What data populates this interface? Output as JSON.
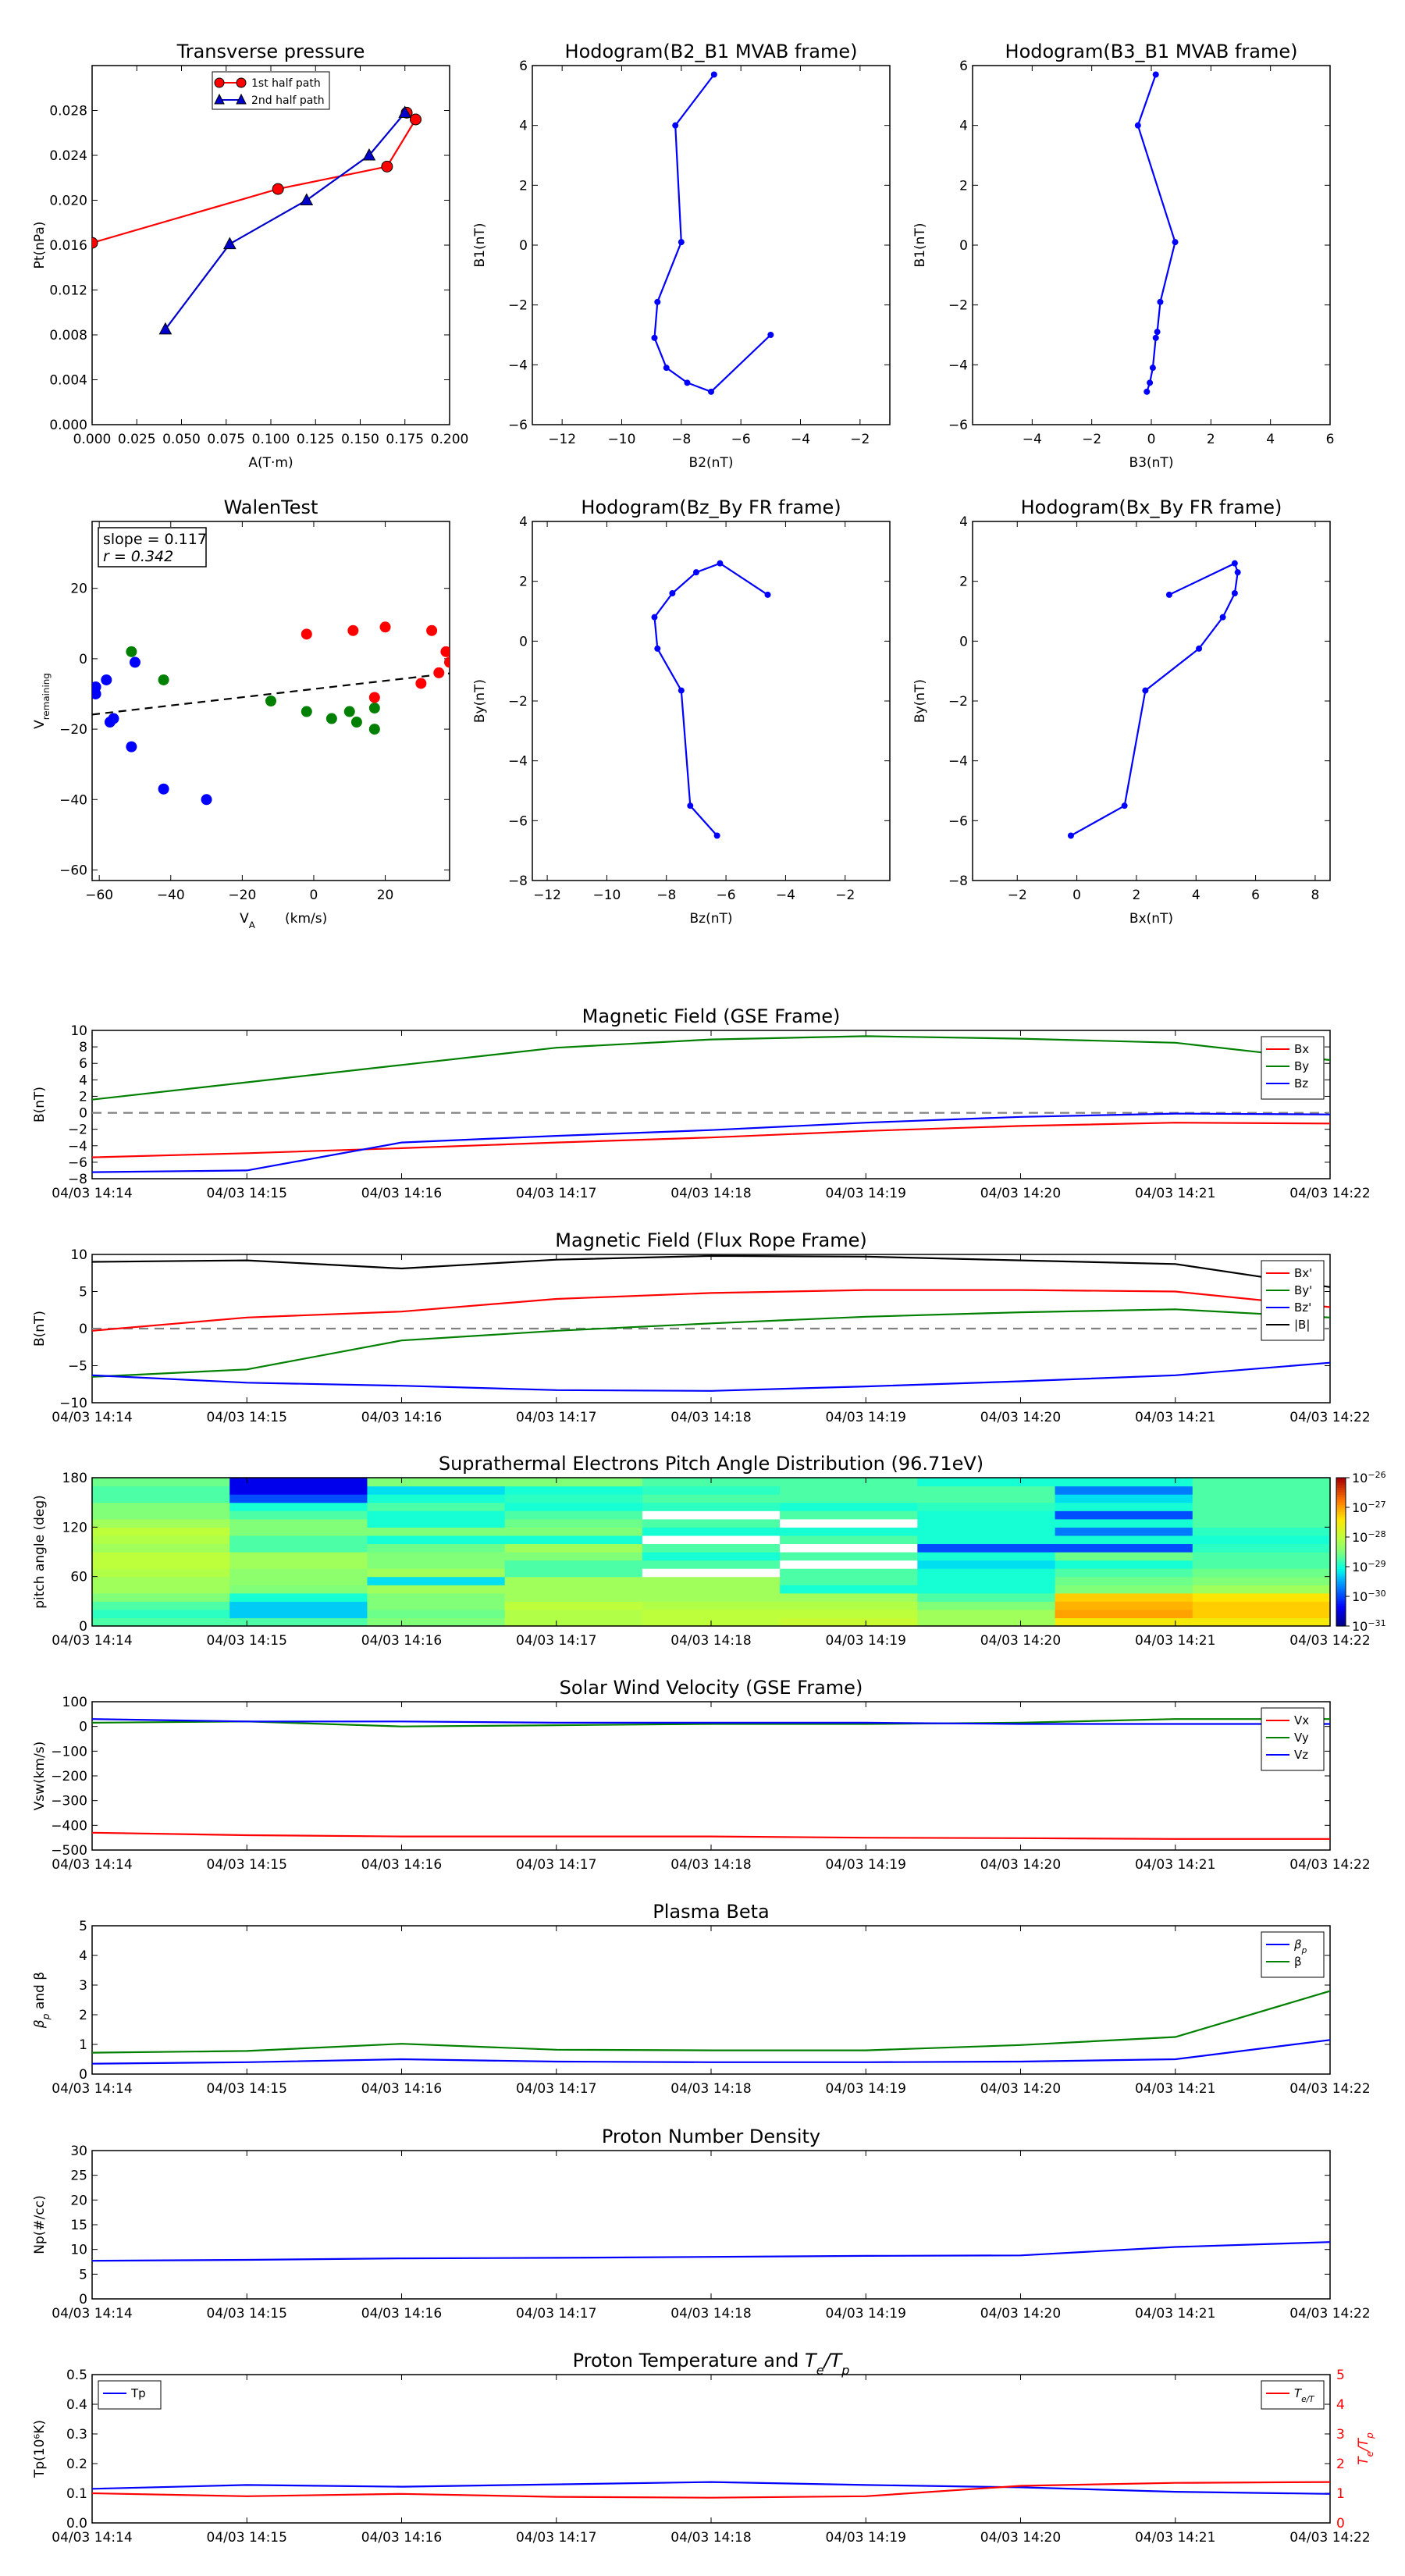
{
  "colors": {
    "red": "#ff0000",
    "green": "#008000",
    "blue": "#0000ff",
    "black": "#000000",
    "gray": "#808080",
    "navy": "#0000cc"
  },
  "time_ticks": [
    "04/03 14:14",
    "04/03 14:15",
    "04/03 14:16",
    "04/03 14:17",
    "04/03 14:18",
    "04/03 14:19",
    "04/03 14:20",
    "04/03 14:21",
    "04/03 14:22"
  ],
  "chart_data": [
    {
      "id": "pt",
      "type": "line",
      "title": "Transverse pressure",
      "xlabel": "A(T·m)",
      "ylabel": "Pt(nPa)",
      "xlim": [
        0,
        0.2
      ],
      "ylim": [
        0,
        0.032
      ],
      "xticks": [
        0.0,
        0.025,
        0.05,
        0.075,
        0.1,
        0.125,
        0.15,
        0.175,
        0.2
      ],
      "xtick_labels": [
        "0.000",
        "0.025",
        "0.050",
        "0.075",
        "0.100",
        "0.125",
        "0.150",
        "0.175",
        "0.200"
      ],
      "yticks": [
        0,
        0.004,
        0.008,
        0.012,
        0.016,
        0.02,
        0.024,
        0.028
      ],
      "ytick_labels": [
        "0.000",
        "0.004",
        "0.008",
        "0.012",
        "0.016",
        "0.020",
        "0.024",
        "0.028"
      ],
      "legend": "top-center",
      "series": [
        {
          "name": "1st half path",
          "color": "#ff0000",
          "marker": "circle",
          "x": [
            0.0,
            0.104,
            0.165,
            0.181,
            0.176
          ],
          "y": [
            0.0162,
            0.021,
            0.023,
            0.0272,
            0.0278
          ]
        },
        {
          "name": "2nd half path",
          "color": "#0000cc",
          "marker": "triangle",
          "x": [
            0.041,
            0.077,
            0.12,
            0.155,
            0.175
          ],
          "y": [
            0.0085,
            0.0161,
            0.02,
            0.024,
            0.0278
          ]
        }
      ]
    },
    {
      "id": "h1",
      "type": "line",
      "title": "Hodogram(B2_B1 MVAB frame)",
      "xlabel": "B2(nT)",
      "ylabel": "B1(nT)",
      "xlim": [
        -13,
        -1
      ],
      "ylim": [
        -6,
        6
      ],
      "xticks": [
        -12,
        -10,
        -8,
        -6,
        -4,
        -2
      ],
      "xtick_labels": [
        "−12",
        "−10",
        "−8",
        "−6",
        "−4",
        "−2"
      ],
      "yticks": [
        -6,
        -4,
        -2,
        0,
        2,
        4,
        6
      ],
      "ytick_labels": [
        "−6",
        "−4",
        "−2",
        "0",
        "2",
        "4",
        "6"
      ],
      "series": [
        {
          "color": "#0000ff",
          "marker": "dot",
          "x": [
            -6.9,
            -8.2,
            -8.0,
            -8.8,
            -8.9,
            -8.5,
            -7.8,
            -7.0,
            -5.0
          ],
          "y": [
            5.7,
            4.0,
            0.1,
            -1.9,
            -3.1,
            -4.1,
            -4.6,
            -4.9,
            -3.0
          ]
        }
      ]
    },
    {
      "id": "h2",
      "type": "line",
      "title": "Hodogram(B3_B1 MVAB frame)",
      "xlabel": "B3(nT)",
      "ylabel": "B1(nT)",
      "xlim": [
        -6,
        6
      ],
      "ylim": [
        -6,
        6
      ],
      "xticks": [
        -4,
        -2,
        0,
        2,
        4,
        6
      ],
      "xtick_labels": [
        "−4",
        "−2",
        "0",
        "2",
        "4",
        "6"
      ],
      "yticks": [
        -6,
        -4,
        -2,
        0,
        2,
        4,
        6
      ],
      "ytick_labels": [
        "−6",
        "−4",
        "−2",
        "0",
        "2",
        "4",
        "6"
      ],
      "series": [
        {
          "color": "#0000ff",
          "marker": "dot",
          "x": [
            0.15,
            -0.45,
            0.8,
            0.3,
            0.2,
            0.15,
            0.05,
            -0.05,
            -0.15
          ],
          "y": [
            5.7,
            4.0,
            0.1,
            -1.9,
            -2.9,
            -3.1,
            -4.1,
            -4.6,
            -4.9
          ]
        }
      ]
    },
    {
      "id": "walen",
      "type": "scatter",
      "title": "WalenTest",
      "xlabel": "V_A(km/s)",
      "ylabel": "V_remaining(km/s)",
      "xlim": [
        -62,
        38
      ],
      "ylim": [
        -63,
        39
      ],
      "xticks": [
        -60,
        -40,
        -20,
        0,
        20
      ],
      "xtick_labels": [
        "−60",
        "−40",
        "−20",
        "0",
        "20"
      ],
      "yticks": [
        -60,
        -40,
        -20,
        0,
        20
      ],
      "ytick_labels": [
        "−60",
        "−40",
        "−20",
        "0",
        "20"
      ],
      "annotation": {
        "slope": "slope = 0.117",
        "r": "r = 0.342"
      },
      "fit": {
        "slope": 0.117,
        "intercept": -8.6,
        "color": "#000000",
        "style": "dashed"
      },
      "series": [
        {
          "color": "#0000ff",
          "x": [
            -61,
            -61,
            -58,
            -57,
            -56,
            -51,
            -50,
            -42,
            -30
          ],
          "y": [
            -8,
            -10,
            -6,
            -18,
            -17,
            -25,
            -1,
            -37,
            -40
          ]
        },
        {
          "color": "#008000",
          "x": [
            -51,
            -42,
            -12,
            -2,
            5,
            10,
            12,
            17,
            17
          ],
          "y": [
            2,
            -6,
            -12,
            -15,
            -17,
            -15,
            -18,
            -14,
            -20
          ]
        },
        {
          "color": "#ff0000",
          "x": [
            -2,
            11,
            17,
            20,
            30,
            33,
            35,
            37,
            38
          ],
          "y": [
            7,
            8,
            -11,
            9,
            -7,
            8,
            -4,
            2,
            -1
          ]
        }
      ]
    },
    {
      "id": "h3",
      "type": "line",
      "title": "Hodogram(Bz_By FR frame)",
      "xlabel": "Bz(nT)",
      "ylabel": "By(nT)",
      "xlim": [
        -12.5,
        -0.5
      ],
      "ylim": [
        -8,
        4
      ],
      "xticks": [
        -12,
        -10,
        -8,
        -6,
        -4,
        -2
      ],
      "xtick_labels": [
        "−12",
        "−10",
        "−8",
        "−6",
        "−4",
        "−2"
      ],
      "yticks": [
        -8,
        -6,
        -4,
        -2,
        0,
        2,
        4
      ],
      "ytick_labels": [
        "−8",
        "−6",
        "−4",
        "−2",
        "0",
        "2",
        "4"
      ],
      "series": [
        {
          "color": "#0000ff",
          "marker": "dot",
          "x": [
            -4.6,
            -6.2,
            -7.0,
            -7.8,
            -8.4,
            -8.3,
            -7.5,
            -7.2,
            -6.3
          ],
          "y": [
            1.55,
            2.6,
            2.3,
            1.6,
            0.8,
            -0.25,
            -1.65,
            -5.5,
            -6.5
          ]
        }
      ]
    },
    {
      "id": "h4",
      "type": "line",
      "title": "Hodogram(Bx_By FR frame)",
      "xlabel": "Bx(nT)",
      "ylabel": "By(nT)",
      "xlim": [
        -3.5,
        8.5
      ],
      "ylim": [
        -8,
        4
      ],
      "xticks": [
        -2,
        0,
        2,
        4,
        6,
        8
      ],
      "xtick_labels": [
        "−2",
        "0",
        "2",
        "4",
        "6",
        "8"
      ],
      "yticks": [
        -8,
        -6,
        -4,
        -2,
        0,
        2,
        4
      ],
      "ytick_labels": [
        "−8",
        "−6",
        "−4",
        "−2",
        "0",
        "2",
        "4"
      ],
      "series": [
        {
          "color": "#0000ff",
          "marker": "dot",
          "x": [
            3.1,
            5.3,
            5.4,
            5.3,
            4.9,
            4.1,
            2.3,
            1.6,
            -0.2
          ],
          "y": [
            1.55,
            2.6,
            2.3,
            1.6,
            0.8,
            -0.25,
            -1.65,
            -5.5,
            -6.5
          ]
        }
      ]
    },
    {
      "id": "mfgse",
      "type": "line",
      "title": "Magnetic Field (GSE Frame)",
      "ylabel": "B(nT)",
      "ylim": [
        -8,
        10
      ],
      "yticks": [
        -8,
        -6,
        -4,
        -2,
        0,
        2,
        4,
        6,
        8,
        10
      ],
      "ytick_labels": [
        "−8",
        "−6",
        "−4",
        "−2",
        "0",
        "2",
        "4",
        "6",
        "8",
        "10"
      ],
      "zero_line": true,
      "legend": "top-right",
      "x": [
        0,
        1,
        2,
        3,
        4,
        5,
        6,
        7,
        8
      ],
      "series": [
        {
          "name": "Bx",
          "color": "#ff0000",
          "values": [
            -5.4,
            -4.9,
            -4.3,
            -3.6,
            -3.0,
            -2.2,
            -1.6,
            -1.2,
            -1.3
          ]
        },
        {
          "name": "By",
          "color": "#008000",
          "values": [
            1.6,
            3.7,
            5.8,
            7.9,
            8.9,
            9.3,
            9.0,
            8.5,
            6.4
          ]
        },
        {
          "name": "Bz",
          "color": "#0000ff",
          "values": [
            -7.2,
            -7.0,
            -3.6,
            -2.8,
            -2.1,
            -1.2,
            -0.5,
            -0.1,
            -0.2
          ]
        }
      ]
    },
    {
      "id": "mffr",
      "type": "line",
      "title": "Magnetic Field (Flux Rope Frame)",
      "ylabel": "B(nT)",
      "ylim": [
        -10,
        10
      ],
      "yticks": [
        -10,
        -5,
        0,
        5,
        10
      ],
      "ytick_labels": [
        "−10",
        "−5",
        "0",
        "5",
        "10"
      ],
      "zero_line": true,
      "legend": "top-right",
      "x": [
        0,
        1,
        2,
        3,
        4,
        5,
        6,
        7,
        8
      ],
      "series": [
        {
          "name": "Bx'",
          "color": "#ff0000",
          "values": [
            -0.3,
            1.5,
            2.3,
            4.0,
            4.8,
            5.2,
            5.2,
            5.0,
            2.9
          ]
        },
        {
          "name": "By'",
          "color": "#008000",
          "values": [
            -6.5,
            -5.5,
            -1.6,
            -0.3,
            0.7,
            1.6,
            2.2,
            2.6,
            1.5
          ]
        },
        {
          "name": "Bz'",
          "color": "#0000ff",
          "values": [
            -6.3,
            -7.3,
            -7.7,
            -8.3,
            -8.4,
            -7.8,
            -7.1,
            -6.3,
            -4.6
          ]
        },
        {
          "name": "|B|",
          "color": "#000000",
          "values": [
            9.0,
            9.2,
            8.1,
            9.3,
            9.8,
            9.7,
            9.2,
            8.7,
            5.6
          ]
        }
      ]
    },
    {
      "id": "pad",
      "type": "heatmap",
      "title": "Suprathermal Electrons Pitch Angle Distribution (96.71eV)",
      "ylabel": "pitch angle (deg)",
      "ylim": [
        0,
        180
      ],
      "yticks": [
        0,
        60,
        120,
        180
      ],
      "ytick_labels": [
        "0",
        "60",
        "120",
        "180"
      ],
      "colorbar": {
        "exponents": [
          "−26",
          "−27",
          "−28",
          "−29",
          "−30",
          "−31"
        ],
        "base": "10"
      },
      "bins": 18,
      "values": [
        [
          0.45,
          0.42,
          0.45,
          0.5,
          0.55,
          0.55,
          0.58,
          0.6,
          0.6,
          0.55,
          0.58,
          0.6,
          0.55,
          0.5,
          0.5,
          0.45,
          0.45,
          0.48
        ],
        [
          0.45,
          0.33,
          0.33,
          0.4,
          0.5,
          0.52,
          0.52,
          0.55,
          0.55,
          0.45,
          0.45,
          0.5,
          0.5,
          0.45,
          0.4,
          0.2,
          0.1,
          0.1
        ],
        [
          0.5,
          0.48,
          0.5,
          0.5,
          0.55,
          0.35,
          0.55,
          0.5,
          0.5,
          0.48,
          0.4,
          0.5,
          0.4,
          0.4,
          0.45,
          0.4,
          0.35,
          0.5
        ],
        [
          0.58,
          0.58,
          0.6,
          0.55,
          0.55,
          0.55,
          0.45,
          0.45,
          0.5,
          0.55,
          0.4,
          0.5,
          0.48,
          0.45,
          0.4,
          0.42,
          0.4,
          0.5
        ],
        [
          0.6,
          0.6,
          0.58,
          0.55,
          0.55,
          0.55,
          0.0,
          0.45,
          0.4,
          0.45,
          0.0,
          0.4,
          0.45,
          0.0,
          0.42,
          0.45,
          0.42,
          0.45
        ],
        [
          0.62,
          0.6,
          0.58,
          0.55,
          0.4,
          0.45,
          0.45,
          0.0,
          0.45,
          0.0,
          0.45,
          0.4,
          0.0,
          0.45,
          0.4,
          0.45,
          0.45,
          0.45
        ],
        [
          0.55,
          0.55,
          0.5,
          0.45,
          0.4,
          0.4,
          0.4,
          0.35,
          0.4,
          0.2,
          0.4,
          0.4,
          0.4,
          0.4,
          0.42,
          0.45,
          0.45,
          0.4
        ],
        [
          0.7,
          0.8,
          0.78,
          0.75,
          0.5,
          0.48,
          0.45,
          0.4,
          0.48,
          0.2,
          0.4,
          0.25,
          0.4,
          0.2,
          0.4,
          0.35,
          0.25,
          0.4
        ],
        [
          0.7,
          0.75,
          0.75,
          0.72,
          0.55,
          0.5,
          0.48,
          0.45,
          0.45,
          0.42,
          0.4,
          0.42,
          0.45,
          0.45,
          0.45,
          0.45,
          0.45,
          0.45
        ]
      ]
    },
    {
      "id": "vsw",
      "type": "line",
      "title": "Solar Wind Velocity (GSE Frame)",
      "ylabel": "Vsw(km/s)",
      "ylim": [
        -500,
        100
      ],
      "yticks": [
        -500,
        -400,
        -300,
        -200,
        -100,
        0,
        100
      ],
      "ytick_labels": [
        "−500",
        "−400",
        "−300",
        "−200",
        "−100",
        "0",
        "100"
      ],
      "legend": "top-right",
      "x": [
        0,
        1,
        2,
        3,
        4,
        5,
        6,
        7,
        8
      ],
      "series": [
        {
          "name": "Vx",
          "color": "#ff0000",
          "values": [
            -430,
            -440,
            -445,
            -445,
            -445,
            -450,
            -452,
            -455,
            -455
          ]
        },
        {
          "name": "Vy",
          "color": "#008000",
          "values": [
            15,
            20,
            0,
            5,
            10,
            10,
            15,
            30,
            30
          ]
        },
        {
          "name": "Vz",
          "color": "#0000ff",
          "values": [
            30,
            20,
            20,
            15,
            15,
            15,
            10,
            10,
            10
          ]
        }
      ]
    },
    {
      "id": "beta",
      "type": "line",
      "title": "Plasma Beta",
      "ylabel": "β_p and β",
      "ylim": [
        0,
        5
      ],
      "yticks": [
        0,
        1,
        2,
        3,
        4,
        5
      ],
      "ytick_labels": [
        "0",
        "1",
        "2",
        "3",
        "4",
        "5"
      ],
      "legend": "top-right",
      "x": [
        0,
        1,
        2,
        3,
        4,
        5,
        6,
        7,
        8
      ],
      "series": [
        {
          "name": "β_p",
          "color": "#0000ff",
          "values": [
            0.35,
            0.4,
            0.5,
            0.42,
            0.4,
            0.4,
            0.42,
            0.5,
            1.15
          ]
        },
        {
          "name": "β",
          "color": "#008000",
          "values": [
            0.72,
            0.78,
            1.02,
            0.82,
            0.8,
            0.8,
            0.98,
            1.25,
            2.8
          ]
        }
      ]
    },
    {
      "id": "np",
      "type": "line",
      "title": "Proton Number Density",
      "ylabel": "Np(#/cc)",
      "ylim": [
        0,
        30
      ],
      "yticks": [
        0,
        5,
        10,
        15,
        20,
        25,
        30
      ],
      "ytick_labels": [
        "0",
        "5",
        "10",
        "15",
        "20",
        "25",
        "30"
      ],
      "x": [
        0,
        1,
        2,
        3,
        4,
        5,
        6,
        7,
        8
      ],
      "series": [
        {
          "name": "Np",
          "color": "#0000ff",
          "values": [
            7.7,
            7.9,
            8.2,
            8.3,
            8.5,
            8.7,
            8.8,
            10.5,
            11.5
          ]
        }
      ]
    },
    {
      "id": "tp",
      "type": "line",
      "title": "Proton Temperature and T_e/T_p",
      "ylabel": "Tp(10⁶K)",
      "ylim": [
        0,
        0.5
      ],
      "yticks": [
        0,
        0.1,
        0.2,
        0.3,
        0.4,
        0.5
      ],
      "ytick_labels": [
        "0.0",
        "0.1",
        "0.2",
        "0.3",
        "0.4",
        "0.5"
      ],
      "y2label": "T_e/T_p",
      "y2lim": [
        0,
        5
      ],
      "y2ticks": [
        0,
        1,
        2,
        3,
        4,
        5
      ],
      "y2tick_labels": [
        "0",
        "1",
        "2",
        "3",
        "4",
        "5"
      ],
      "x": [
        0,
        1,
        2,
        3,
        4,
        5,
        6,
        7,
        8
      ],
      "series": [
        {
          "name": "Tp",
          "color": "#0000ff",
          "values": [
            0.115,
            0.128,
            0.122,
            0.13,
            0.138,
            0.128,
            0.12,
            0.105,
            0.098
          ],
          "legend": "top-left"
        },
        {
          "name": "T_e/T_p",
          "color": "#ff0000",
          "values": [
            1.0,
            0.9,
            0.98,
            0.88,
            0.85,
            0.9,
            1.25,
            1.35,
            1.38
          ],
          "axis": "right",
          "legend": "top-right"
        }
      ]
    }
  ]
}
